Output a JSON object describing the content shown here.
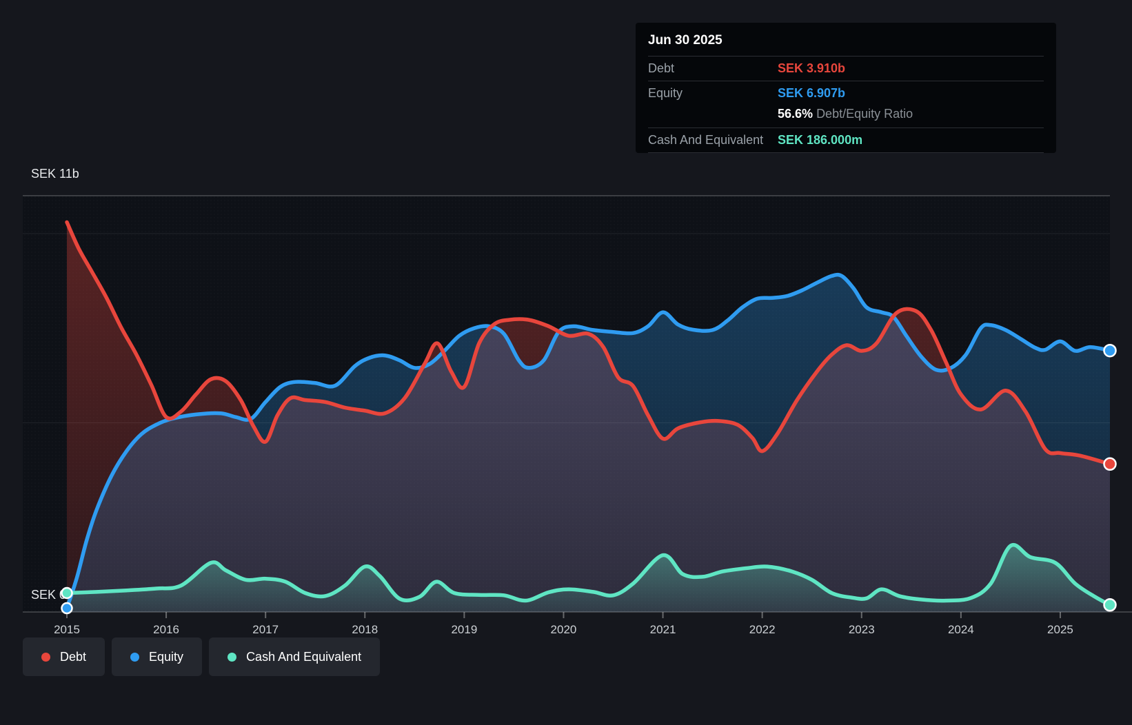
{
  "y_axis": {
    "top_label": "SEK 11b",
    "bottom_label": "SEK 0"
  },
  "x_axis": {
    "years": [
      "2015",
      "2016",
      "2017",
      "2018",
      "2019",
      "2020",
      "2021",
      "2022",
      "2023",
      "2024",
      "2025"
    ]
  },
  "tooltip": {
    "date": "Jun 30 2025",
    "debt_label": "Debt",
    "debt_value": "SEK 3.910b",
    "equity_label": "Equity",
    "equity_value": "SEK 6.907b",
    "ratio_value": "56.6%",
    "ratio_label": "Debt/Equity Ratio",
    "cash_label": "Cash And Equivalent",
    "cash_value": "SEK 186.000m"
  },
  "legend": [
    {
      "id": "debt",
      "label": "Debt",
      "color": "#e8463c"
    },
    {
      "id": "equity",
      "label": "Equity",
      "color": "#2f9cf1"
    },
    {
      "id": "cash",
      "label": "Cash And Equivalent",
      "color": "#5fe5c3"
    }
  ],
  "colors": {
    "page_bg": "#15171d",
    "plot_bg": "#0e1117",
    "grid_faint": "rgba(255,255,255,0.08)",
    "grid_strong": "rgba(255,255,255,0.24)",
    "axis_text": "#ccd0d4",
    "y_label_text": "#e9ebed"
  },
  "chart_data": {
    "type": "area",
    "title": "",
    "xlabel": "",
    "ylabel": "SEK (billions)",
    "x_min": 2015,
    "x_max": 2025.5,
    "y_min": 0,
    "y_max": 11,
    "gridlines": [
      5,
      10
    ],
    "legend_position": "bottom-left",
    "hover_point": {
      "date": "Jun 30 2025",
      "debt": 3.91,
      "equity": 6.907,
      "cash": 0.186
    },
    "series": [
      {
        "name": "Debt",
        "color": "#e8463c",
        "fill_top": 0.34,
        "fill_bottom": 0.14,
        "start_marker": false,
        "points": [
          [
            2015.0,
            10.3
          ],
          [
            2015.12,
            9.6
          ],
          [
            2015.25,
            9.0
          ],
          [
            2015.4,
            8.3
          ],
          [
            2015.55,
            7.5
          ],
          [
            2015.7,
            6.8
          ],
          [
            2015.85,
            6.0
          ],
          [
            2016.0,
            5.15
          ],
          [
            2016.15,
            5.3
          ],
          [
            2016.3,
            5.75
          ],
          [
            2016.45,
            6.15
          ],
          [
            2016.6,
            6.1
          ],
          [
            2016.75,
            5.6
          ],
          [
            2016.88,
            4.9
          ],
          [
            2017.0,
            4.5
          ],
          [
            2017.12,
            5.2
          ],
          [
            2017.25,
            5.65
          ],
          [
            2017.4,
            5.6
          ],
          [
            2017.6,
            5.55
          ],
          [
            2017.8,
            5.4
          ],
          [
            2018.0,
            5.32
          ],
          [
            2018.2,
            5.25
          ],
          [
            2018.4,
            5.65
          ],
          [
            2018.6,
            6.55
          ],
          [
            2018.73,
            7.1
          ],
          [
            2018.87,
            6.35
          ],
          [
            2019.0,
            5.95
          ],
          [
            2019.15,
            7.1
          ],
          [
            2019.3,
            7.6
          ],
          [
            2019.45,
            7.72
          ],
          [
            2019.65,
            7.72
          ],
          [
            2019.85,
            7.55
          ],
          [
            2020.05,
            7.3
          ],
          [
            2020.25,
            7.35
          ],
          [
            2020.4,
            7.0
          ],
          [
            2020.55,
            6.2
          ],
          [
            2020.7,
            5.97
          ],
          [
            2020.85,
            5.2
          ],
          [
            2021.0,
            4.58
          ],
          [
            2021.15,
            4.85
          ],
          [
            2021.35,
            5.0
          ],
          [
            2021.55,
            5.05
          ],
          [
            2021.75,
            4.95
          ],
          [
            2021.9,
            4.6
          ],
          [
            2022.0,
            4.25
          ],
          [
            2022.15,
            4.7
          ],
          [
            2022.35,
            5.6
          ],
          [
            2022.55,
            6.35
          ],
          [
            2022.7,
            6.8
          ],
          [
            2022.85,
            7.05
          ],
          [
            2023.0,
            6.9
          ],
          [
            2023.15,
            7.1
          ],
          [
            2023.35,
            7.9
          ],
          [
            2023.55,
            7.95
          ],
          [
            2023.7,
            7.45
          ],
          [
            2023.85,
            6.6
          ],
          [
            2024.0,
            5.75
          ],
          [
            2024.2,
            5.35
          ],
          [
            2024.45,
            5.85
          ],
          [
            2024.65,
            5.3
          ],
          [
            2024.85,
            4.3
          ],
          [
            2025.0,
            4.2
          ],
          [
            2025.2,
            4.13
          ],
          [
            2025.5,
            3.91
          ]
        ]
      },
      {
        "name": "Equity",
        "color": "#2f9cf1",
        "fill_top": 0.3,
        "fill_bottom": 0.15,
        "start_marker": true,
        "points": [
          [
            2015.0,
            0.1
          ],
          [
            2015.1,
            0.9
          ],
          [
            2015.2,
            1.9
          ],
          [
            2015.3,
            2.7
          ],
          [
            2015.45,
            3.6
          ],
          [
            2015.6,
            4.25
          ],
          [
            2015.75,
            4.7
          ],
          [
            2015.9,
            4.95
          ],
          [
            2016.05,
            5.1
          ],
          [
            2016.3,
            5.22
          ],
          [
            2016.55,
            5.25
          ],
          [
            2016.7,
            5.15
          ],
          [
            2016.85,
            5.1
          ],
          [
            2017.0,
            5.55
          ],
          [
            2017.15,
            5.95
          ],
          [
            2017.3,
            6.08
          ],
          [
            2017.5,
            6.05
          ],
          [
            2017.7,
            5.98
          ],
          [
            2017.9,
            6.5
          ],
          [
            2018.05,
            6.72
          ],
          [
            2018.2,
            6.78
          ],
          [
            2018.35,
            6.65
          ],
          [
            2018.5,
            6.45
          ],
          [
            2018.65,
            6.55
          ],
          [
            2018.8,
            6.9
          ],
          [
            2018.95,
            7.3
          ],
          [
            2019.1,
            7.5
          ],
          [
            2019.25,
            7.55
          ],
          [
            2019.4,
            7.35
          ],
          [
            2019.55,
            6.65
          ],
          [
            2019.65,
            6.45
          ],
          [
            2019.8,
            6.65
          ],
          [
            2019.95,
            7.4
          ],
          [
            2020.1,
            7.55
          ],
          [
            2020.3,
            7.45
          ],
          [
            2020.5,
            7.4
          ],
          [
            2020.7,
            7.37
          ],
          [
            2020.85,
            7.55
          ],
          [
            2021.0,
            7.92
          ],
          [
            2021.15,
            7.6
          ],
          [
            2021.3,
            7.46
          ],
          [
            2021.5,
            7.45
          ],
          [
            2021.65,
            7.7
          ],
          [
            2021.8,
            8.05
          ],
          [
            2021.95,
            8.28
          ],
          [
            2022.1,
            8.3
          ],
          [
            2022.25,
            8.35
          ],
          [
            2022.4,
            8.5
          ],
          [
            2022.55,
            8.7
          ],
          [
            2022.7,
            8.88
          ],
          [
            2022.8,
            8.88
          ],
          [
            2022.92,
            8.55
          ],
          [
            2023.05,
            8.05
          ],
          [
            2023.2,
            7.92
          ],
          [
            2023.32,
            7.8
          ],
          [
            2023.45,
            7.3
          ],
          [
            2023.6,
            6.75
          ],
          [
            2023.75,
            6.4
          ],
          [
            2023.9,
            6.45
          ],
          [
            2024.05,
            6.8
          ],
          [
            2024.2,
            7.5
          ],
          [
            2024.3,
            7.58
          ],
          [
            2024.45,
            7.45
          ],
          [
            2024.6,
            7.22
          ],
          [
            2024.75,
            6.98
          ],
          [
            2024.85,
            6.93
          ],
          [
            2025.0,
            7.15
          ],
          [
            2025.15,
            6.9
          ],
          [
            2025.3,
            7.0
          ],
          [
            2025.5,
            6.907
          ]
        ]
      },
      {
        "name": "Cash And Equivalent",
        "color": "#5fe5c3",
        "fill_top": 0.4,
        "fill_bottom": 0.08,
        "start_marker": true,
        "points": [
          [
            2015.0,
            0.5
          ],
          [
            2015.3,
            0.53
          ],
          [
            2015.6,
            0.57
          ],
          [
            2015.9,
            0.62
          ],
          [
            2016.15,
            0.7
          ],
          [
            2016.45,
            1.3
          ],
          [
            2016.6,
            1.1
          ],
          [
            2016.8,
            0.85
          ],
          [
            2017.0,
            0.88
          ],
          [
            2017.2,
            0.8
          ],
          [
            2017.4,
            0.5
          ],
          [
            2017.6,
            0.42
          ],
          [
            2017.8,
            0.7
          ],
          [
            2018.0,
            1.2
          ],
          [
            2018.15,
            0.95
          ],
          [
            2018.35,
            0.35
          ],
          [
            2018.55,
            0.4
          ],
          [
            2018.72,
            0.8
          ],
          [
            2018.9,
            0.5
          ],
          [
            2019.15,
            0.45
          ],
          [
            2019.4,
            0.44
          ],
          [
            2019.62,
            0.3
          ],
          [
            2019.85,
            0.52
          ],
          [
            2020.05,
            0.6
          ],
          [
            2020.3,
            0.53
          ],
          [
            2020.5,
            0.44
          ],
          [
            2020.7,
            0.75
          ],
          [
            2021.0,
            1.5
          ],
          [
            2021.2,
            1.0
          ],
          [
            2021.4,
            0.93
          ],
          [
            2021.6,
            1.07
          ],
          [
            2021.85,
            1.16
          ],
          [
            2022.05,
            1.2
          ],
          [
            2022.3,
            1.07
          ],
          [
            2022.5,
            0.85
          ],
          [
            2022.7,
            0.5
          ],
          [
            2022.9,
            0.38
          ],
          [
            2023.05,
            0.36
          ],
          [
            2023.2,
            0.6
          ],
          [
            2023.38,
            0.42
          ],
          [
            2023.6,
            0.33
          ],
          [
            2023.85,
            0.3
          ],
          [
            2024.1,
            0.37
          ],
          [
            2024.3,
            0.75
          ],
          [
            2024.5,
            1.75
          ],
          [
            2024.7,
            1.45
          ],
          [
            2024.95,
            1.3
          ],
          [
            2025.15,
            0.75
          ],
          [
            2025.35,
            0.4
          ],
          [
            2025.5,
            0.186
          ]
        ]
      }
    ]
  }
}
